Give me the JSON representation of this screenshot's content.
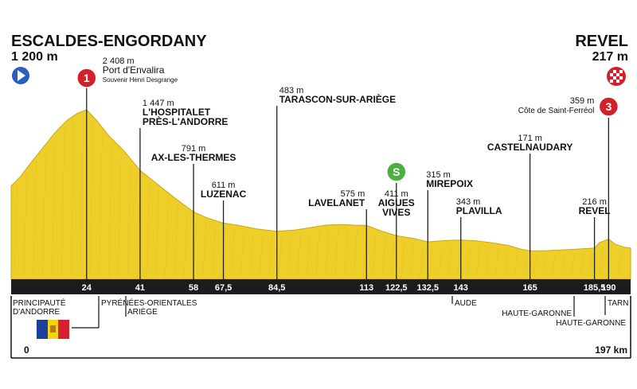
{
  "chart_data": {
    "type": "area",
    "start": {
      "name": "ESCALDES-ENGORDANY",
      "elevation": "1 200 m"
    },
    "finish": {
      "name": "REVEL",
      "elevation": "217 m"
    },
    "xlim": [
      0,
      197
    ],
    "x_start_label": "0",
    "x_end_label": "197 km",
    "profile": [
      [
        0,
        1200
      ],
      [
        3,
        1350
      ],
      [
        6,
        1550
      ],
      [
        10,
        1800
      ],
      [
        14,
        2050
      ],
      [
        18,
        2250
      ],
      [
        21,
        2350
      ],
      [
        24,
        2408
      ],
      [
        27,
        2250
      ],
      [
        31,
        2000
      ],
      [
        36,
        1750
      ],
      [
        41,
        1447
      ],
      [
        46,
        1250
      ],
      [
        51,
        1050
      ],
      [
        55,
        900
      ],
      [
        58,
        791
      ],
      [
        62,
        700
      ],
      [
        67.5,
        611
      ],
      [
        72,
        580
      ],
      [
        78,
        520
      ],
      [
        84.5,
        483
      ],
      [
        90,
        500
      ],
      [
        95,
        540
      ],
      [
        100,
        580
      ],
      [
        105,
        590
      ],
      [
        109,
        580
      ],
      [
        113,
        575
      ],
      [
        117,
        500
      ],
      [
        122.5,
        411
      ],
      [
        128,
        370
      ],
      [
        132.5,
        315
      ],
      [
        137,
        330
      ],
      [
        140,
        340
      ],
      [
        143,
        343
      ],
      [
        148,
        330
      ],
      [
        153,
        300
      ],
      [
        158,
        260
      ],
      [
        162,
        200
      ],
      [
        165,
        171
      ],
      [
        170,
        175
      ],
      [
        175,
        185
      ],
      [
        180,
        200
      ],
      [
        185.5,
        216
      ],
      [
        187,
        300
      ],
      [
        190,
        359
      ],
      [
        192,
        280
      ],
      [
        195,
        230
      ],
      [
        197,
        217
      ]
    ],
    "km_ticks": [
      "24",
      "41",
      "58",
      "67,5",
      "84,5",
      "113",
      "122,5",
      "132,5",
      "143",
      "165",
      "185,5",
      "190"
    ],
    "points": [
      {
        "km": 24,
        "elevation": "2 408 m",
        "name": "Port d'Envalira",
        "sub": "Souvenir Henri Desgrange",
        "marker": "1"
      },
      {
        "km": 41,
        "elevation": "1 447 m",
        "name": "L'HOSPITALET",
        "name2": "PRÈS-L'ANDORRE"
      },
      {
        "km": 58,
        "elevation": "791 m",
        "name": "AX-LES-THERMES"
      },
      {
        "km": 67.5,
        "elevation": "611 m",
        "name": "LUZENAC"
      },
      {
        "km": 84.5,
        "elevation": "483 m",
        "name": "TARASCON-SUR-ARIÈGE"
      },
      {
        "km": 113,
        "elevation": "575 m",
        "name": "LAVELANET"
      },
      {
        "km": 122.5,
        "elevation": "411 m",
        "name": "AIGUES",
        "name2": "VIVES",
        "marker": "S"
      },
      {
        "km": 132.5,
        "elevation": "315 m",
        "name": "MIREPOIX"
      },
      {
        "km": 143,
        "elevation": "343 m",
        "name": "PLAVILLA"
      },
      {
        "km": 165,
        "elevation": "171 m",
        "name": "CASTELNAUDARY"
      },
      {
        "km": 185.5,
        "elevation": "216 m",
        "name": "REVEL"
      },
      {
        "km": 190,
        "elevation": "359 m",
        "name": "Côte de Saint-Ferréol",
        "marker": "3"
      }
    ],
    "regions": {
      "left1": "PRINCIPAUTÉ",
      "left2": "D'ANDORRE",
      "pyrenees": "PYRÉNÉES-ORIENTALES",
      "ariege": "ARIÈGE",
      "aude": "AUDE",
      "hg1": "HAUTE-GARONNE",
      "hg2": "HAUTE-GARONNE",
      "tarn": "TARN"
    },
    "colors": {
      "profile": "#eecf2a",
      "profile_dark": "#d4b21d",
      "band": "#1c1c1c",
      "marker_red": "#d4202a",
      "marker_green": "#4caf3f",
      "start_blue": "#2a5fbf",
      "andorra_blue": "#1a3f9c",
      "andorra_yellow": "#f4d313",
      "andorra_red": "#d52030"
    }
  }
}
